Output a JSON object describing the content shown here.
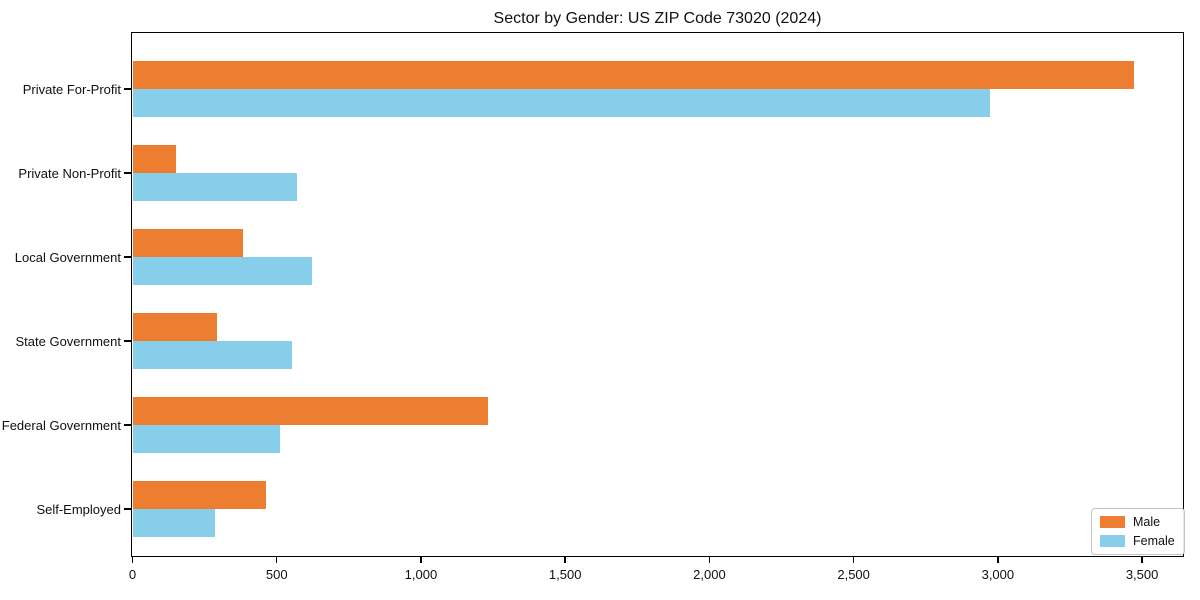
{
  "title": "Sector by Gender: US ZIP Code 73020 (2024)",
  "chart_data": {
    "type": "bar",
    "orientation": "horizontal",
    "title": "Sector by Gender: US ZIP Code 73020 (2024)",
    "categories": [
      "Private For-Profit",
      "Private Non-Profit",
      "Local Government",
      "State Government",
      "Federal Government",
      "Self-Employed"
    ],
    "series": [
      {
        "name": "Male",
        "color": "#ED7D31",
        "values": [
          3470,
          150,
          380,
          290,
          1230,
          460
        ]
      },
      {
        "name": "Female",
        "color": "#87CEEB",
        "values": [
          2970,
          570,
          620,
          550,
          510,
          285
        ]
      }
    ],
    "xlabel": "",
    "ylabel": "",
    "xlim": [
      0,
      3640
    ],
    "x_ticks": [
      0,
      500,
      1000,
      1500,
      2000,
      2500,
      3000,
      3500
    ],
    "x_tick_labels": [
      "0",
      "500",
      "1,000",
      "1,500",
      "2,000",
      "2,500",
      "3,000",
      "3,500"
    ],
    "grid": false,
    "legend": {
      "position": "lower right",
      "entries": [
        "Male",
        "Female"
      ]
    }
  },
  "colors": {
    "frame": "#000000",
    "background": "#ffffff"
  }
}
